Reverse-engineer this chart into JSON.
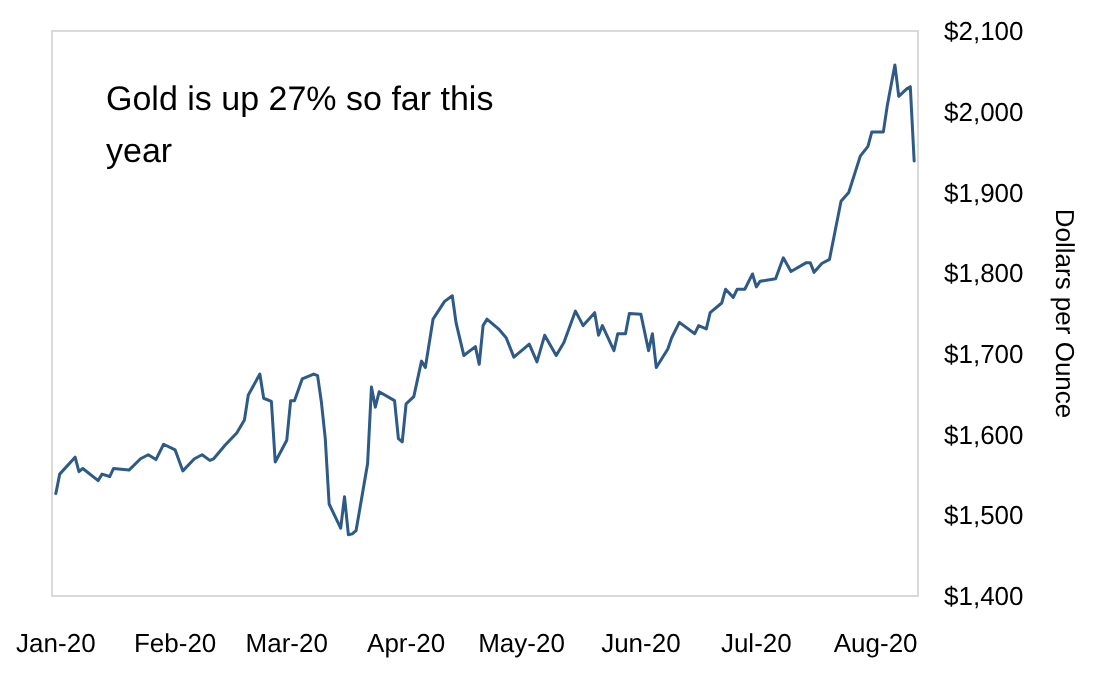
{
  "chart_data": {
    "type": "line",
    "ylabel": "Dollars per Ounce",
    "annotations": [
      "Gold is up 27% so far this year"
    ],
    "x": [
      "2020-01-01",
      "2020-01-02",
      "2020-01-06",
      "2020-01-07",
      "2020-01-08",
      "2020-01-12",
      "2020-01-13",
      "2020-01-15",
      "2020-01-16",
      "2020-01-20",
      "2020-01-23",
      "2020-01-25",
      "2020-01-27",
      "2020-01-29",
      "2020-02-01",
      "2020-02-03",
      "2020-02-06",
      "2020-02-08",
      "2020-02-10",
      "2020-02-11",
      "2020-02-14",
      "2020-02-17",
      "2020-02-19",
      "2020-02-20",
      "2020-02-23",
      "2020-02-24",
      "2020-02-26",
      "2020-02-27",
      "2020-03-01",
      "2020-03-02",
      "2020-03-03",
      "2020-03-05",
      "2020-03-08",
      "2020-03-09",
      "2020-03-10",
      "2020-03-11",
      "2020-03-12",
      "2020-03-15",
      "2020-03-16",
      "2020-03-17",
      "2020-03-18",
      "2020-03-19",
      "2020-03-22",
      "2020-03-23",
      "2020-03-24",
      "2020-03-25",
      "2020-03-29",
      "2020-03-30",
      "2020-03-31",
      "2020-04-01",
      "2020-04-03",
      "2020-04-05",
      "2020-04-06",
      "2020-04-08",
      "2020-04-11",
      "2020-04-13",
      "2020-04-14",
      "2020-04-16",
      "2020-04-19",
      "2020-04-20",
      "2020-04-21",
      "2020-04-22",
      "2020-04-25",
      "2020-04-27",
      "2020-04-29",
      "2020-05-03",
      "2020-05-05",
      "2020-05-07",
      "2020-05-10",
      "2020-05-12",
      "2020-05-15",
      "2020-05-17",
      "2020-05-20",
      "2020-05-21",
      "2020-05-22",
      "2020-05-25",
      "2020-05-26",
      "2020-05-28",
      "2020-05-29",
      "2020-06-01",
      "2020-06-03",
      "2020-06-04",
      "2020-06-05",
      "2020-06-08",
      "2020-06-09",
      "2020-06-11",
      "2020-06-15",
      "2020-06-16",
      "2020-06-18",
      "2020-06-19",
      "2020-06-22",
      "2020-06-23",
      "2020-06-25",
      "2020-06-26",
      "2020-06-28",
      "2020-06-30",
      "2020-07-01",
      "2020-07-02",
      "2020-07-06",
      "2020-07-08",
      "2020-07-10",
      "2020-07-14",
      "2020-07-15",
      "2020-07-16",
      "2020-07-18",
      "2020-07-20",
      "2020-07-23",
      "2020-07-25",
      "2020-07-28",
      "2020-07-30",
      "2020-07-31",
      "2020-08-03",
      "2020-08-04",
      "2020-08-06",
      "2020-08-07",
      "2020-08-09",
      "2020-08-10",
      "2020-08-11"
    ],
    "series": [
      {
        "color": "#2e5a87",
        "values": [
          1527,
          1551,
          1572,
          1554,
          1558,
          1543,
          1551,
          1548,
          1558,
          1556,
          1570,
          1575,
          1569,
          1588,
          1581,
          1555,
          1570,
          1575,
          1568,
          1570,
          1587,
          1602,
          1618,
          1649,
          1675,
          1645,
          1641,
          1566,
          1593,
          1642,
          1642,
          1669,
          1675,
          1673,
          1640,
          1595,
          1514,
          1484,
          1523,
          1476,
          1477,
          1481,
          1564,
          1659,
          1634,
          1653,
          1642,
          1595,
          1591,
          1638,
          1647,
          1691,
          1683,
          1743,
          1765,
          1772,
          1738,
          1698,
          1709,
          1687,
          1735,
          1743,
          1731,
          1720,
          1696,
          1712,
          1690,
          1723,
          1698,
          1714,
          1753,
          1735,
          1751,
          1723,
          1735,
          1704,
          1725,
          1725,
          1750,
          1749,
          1704,
          1725,
          1683,
          1706,
          1720,
          1739,
          1725,
          1735,
          1731,
          1751,
          1763,
          1780,
          1770,
          1780,
          1780,
          1799,
          1783,
          1790,
          1793,
          1819,
          1802,
          1813,
          1813,
          1801,
          1812,
          1817,
          1889,
          1900,
          1945,
          1957,
          1975,
          1975,
          2007,
          2058,
          2019,
          2028,
          2031,
          1939
        ]
      }
    ],
    "xlim": [
      "2019-12-31",
      "2020-08-12"
    ],
    "xticks": [
      {
        "value": "2020-01-01",
        "label": "Jan-20"
      },
      {
        "value": "2020-02-01",
        "label": "Feb-20"
      },
      {
        "value": "2020-03-01",
        "label": "Mar-20"
      },
      {
        "value": "2020-04-01",
        "label": "Apr-20"
      },
      {
        "value": "2020-05-01",
        "label": "May-20"
      },
      {
        "value": "2020-06-01",
        "label": "Jun-20"
      },
      {
        "value": "2020-07-01",
        "label": "Jul-20"
      },
      {
        "value": "2020-08-01",
        "label": "Aug-20"
      }
    ],
    "ylim": [
      1400,
      2100
    ],
    "yticks": [
      {
        "value": 1400,
        "label": "$1,400"
      },
      {
        "value": 1500,
        "label": "$1,500"
      },
      {
        "value": 1600,
        "label": "$1,600"
      },
      {
        "value": 1700,
        "label": "$1,700"
      },
      {
        "value": 1800,
        "label": "$1,800"
      },
      {
        "value": 1900,
        "label": "$1,900"
      },
      {
        "value": 2000,
        "label": "$2,000"
      },
      {
        "value": 2100,
        "label": "$2,100"
      }
    ],
    "grid": false,
    "marker": "none",
    "line_style": "solid"
  }
}
